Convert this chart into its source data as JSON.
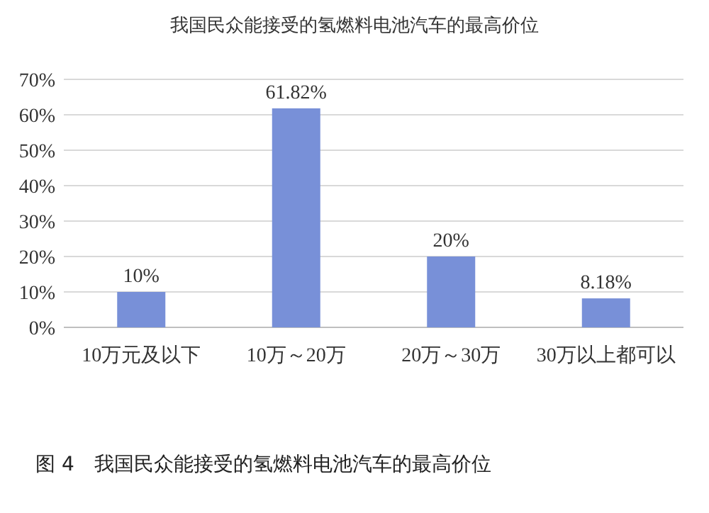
{
  "chart_data": {
    "type": "bar",
    "title": "我国民众能接受的氢燃料电池汽车的最高价位",
    "categories": [
      "10万元及以下",
      "10万～20万",
      "20万～30万",
      "30万以上都可以"
    ],
    "values": [
      10,
      61.82,
      20,
      8.18
    ],
    "value_labels": [
      "10%",
      "61.82%",
      "20%",
      "8.18%"
    ],
    "color": "#7890d8",
    "ylim": [
      0,
      70
    ],
    "yticks": [
      {
        "value": 0,
        "label": "0%"
      },
      {
        "value": 10,
        "label": "10%"
      },
      {
        "value": 20,
        "label": "20%"
      },
      {
        "value": 30,
        "label": "30%"
      },
      {
        "value": 40,
        "label": "40%"
      },
      {
        "value": 50,
        "label": "50%"
      },
      {
        "value": 60,
        "label": "60%"
      },
      {
        "value": 70,
        "label": "70%"
      }
    ],
    "grid": "y",
    "annotations": [
      "图 4　我国民众能接受的氢燃料电池汽车的最高价位"
    ]
  }
}
